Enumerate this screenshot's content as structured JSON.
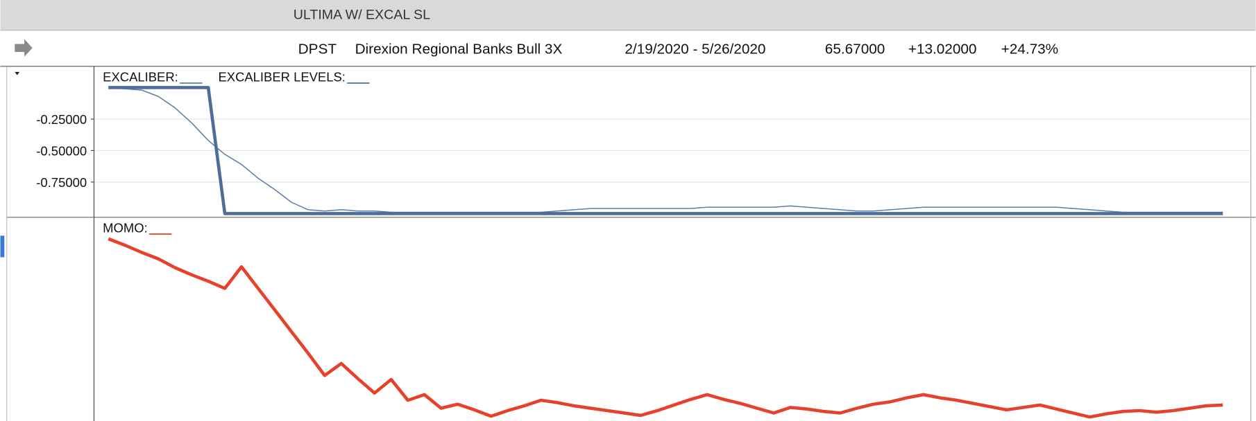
{
  "window": {
    "title": "ULTIMA W/ EXCAL SL"
  },
  "header": {
    "symbol": "DPST",
    "name": "Direxion Regional Banks Bull 3X",
    "range": "2/19/2020 - 5/26/2020",
    "last": "65.67000",
    "change": "+13.02000",
    "percent": "+24.73%"
  },
  "chart_data": [
    {
      "type": "line",
      "categories": [
        null,
        null,
        null,
        null,
        null,
        null,
        null,
        null,
        null,
        null,
        null,
        null,
        null,
        null,
        null,
        null,
        null,
        null,
        null,
        null,
        null,
        null,
        null,
        null,
        null,
        null,
        null,
        null,
        null,
        null,
        null,
        null,
        null,
        null,
        null,
        null,
        null,
        null,
        null,
        null,
        null,
        null,
        null,
        null,
        null,
        null,
        null,
        null,
        null,
        null,
        null,
        null,
        null,
        null,
        null,
        null,
        null,
        null,
        null,
        null,
        null,
        null,
        null,
        null,
        null,
        null,
        null,
        null
      ],
      "series": [
        {
          "name": "EXCALIBER:",
          "color": "#5a7ca6",
          "width": 1.3,
          "values": [
            0,
            -0.01,
            -0.02,
            -0.07,
            -0.16,
            -0.28,
            -0.42,
            -0.53,
            -0.61,
            -0.72,
            -0.81,
            -0.91,
            -0.97,
            -0.98,
            -0.97,
            -0.98,
            -0.98,
            -0.99,
            -0.99,
            -0.99,
            -0.99,
            -0.99,
            -0.99,
            -0.99,
            -0.99,
            -0.99,
            -0.99,
            -0.98,
            -0.97,
            -0.96,
            -0.96,
            -0.96,
            -0.96,
            -0.96,
            -0.96,
            -0.96,
            -0.95,
            -0.95,
            -0.95,
            -0.95,
            -0.95,
            -0.94,
            -0.95,
            -0.96,
            -0.97,
            -0.98,
            -0.98,
            -0.97,
            -0.96,
            -0.95,
            -0.95,
            -0.95,
            -0.95,
            -0.95,
            -0.95,
            -0.95,
            -0.95,
            -0.95,
            -0.96,
            -0.97,
            -0.98,
            -0.99,
            -0.99,
            -0.99,
            -0.99,
            -0.99,
            -0.99,
            -0.99
          ]
        },
        {
          "name": "EXCALIBER LEVELS:",
          "color": "#4d6e9a",
          "width": 4,
          "values": [
            0,
            0,
            0,
            0,
            0,
            0,
            0,
            -1,
            -1,
            -1,
            -1,
            -1,
            -1,
            -1,
            -1,
            -1,
            -1,
            -1,
            -1,
            -1,
            -1,
            -1,
            -1,
            -1,
            -1,
            -1,
            -1,
            -1,
            -1,
            -1,
            -1,
            -1,
            -1,
            -1,
            -1,
            -1,
            -1,
            -1,
            -1,
            -1,
            -1,
            -1,
            -1,
            -1,
            -1,
            -1,
            -1,
            -1,
            -1,
            -1,
            -1,
            -1,
            -1,
            -1,
            -1,
            -1,
            -1,
            -1,
            -1,
            -1,
            -1,
            -1,
            -1,
            -1,
            -1,
            -1,
            -1,
            -1
          ]
        }
      ],
      "ylim": [
        -1.03,
        0.15
      ],
      "yticks": [
        {
          "value": -0.25,
          "label": "-0.25000"
        },
        {
          "value": -0.5,
          "label": "-0.50000"
        },
        {
          "value": -0.75,
          "label": "-0.75000"
        }
      ],
      "grid": true
    },
    {
      "type": "line",
      "categories": [
        null,
        null,
        null,
        null,
        null,
        null,
        null,
        null,
        null,
        null,
        null,
        null,
        null,
        null,
        null,
        null,
        null,
        null,
        null,
        null,
        null,
        null,
        null,
        null,
        null,
        null,
        null,
        null,
        null,
        null,
        null,
        null,
        null,
        null,
        null,
        null,
        null,
        null,
        null,
        null,
        null,
        null,
        null,
        null,
        null,
        null,
        null,
        null,
        null,
        null,
        null,
        null,
        null,
        null,
        null,
        null,
        null,
        null,
        null,
        null,
        null,
        null,
        null,
        null,
        null,
        null,
        null,
        null
      ],
      "series": [
        {
          "name": "MOMO:",
          "color": "#e5412b",
          "width": 4,
          "values": [
            228,
            220,
            211,
            203,
            192,
            183,
            175,
            166,
            193,
            166,
            139,
            112,
            85,
            57,
            72,
            53,
            35,
            52,
            26,
            33,
            16,
            21,
            14,
            6,
            13,
            19,
            26,
            23,
            19,
            16,
            13,
            10,
            7,
            13,
            20,
            27,
            33,
            27,
            22,
            16,
            10,
            17,
            15,
            12,
            10,
            16,
            21,
            24,
            29,
            33,
            29,
            26,
            22,
            18,
            14,
            17,
            20,
            15,
            10,
            5,
            9,
            12,
            13,
            11,
            13,
            16,
            19,
            20
          ]
        }
      ],
      "ylim": [
        0,
        255
      ],
      "yticks": [],
      "grid": true
    }
  ]
}
